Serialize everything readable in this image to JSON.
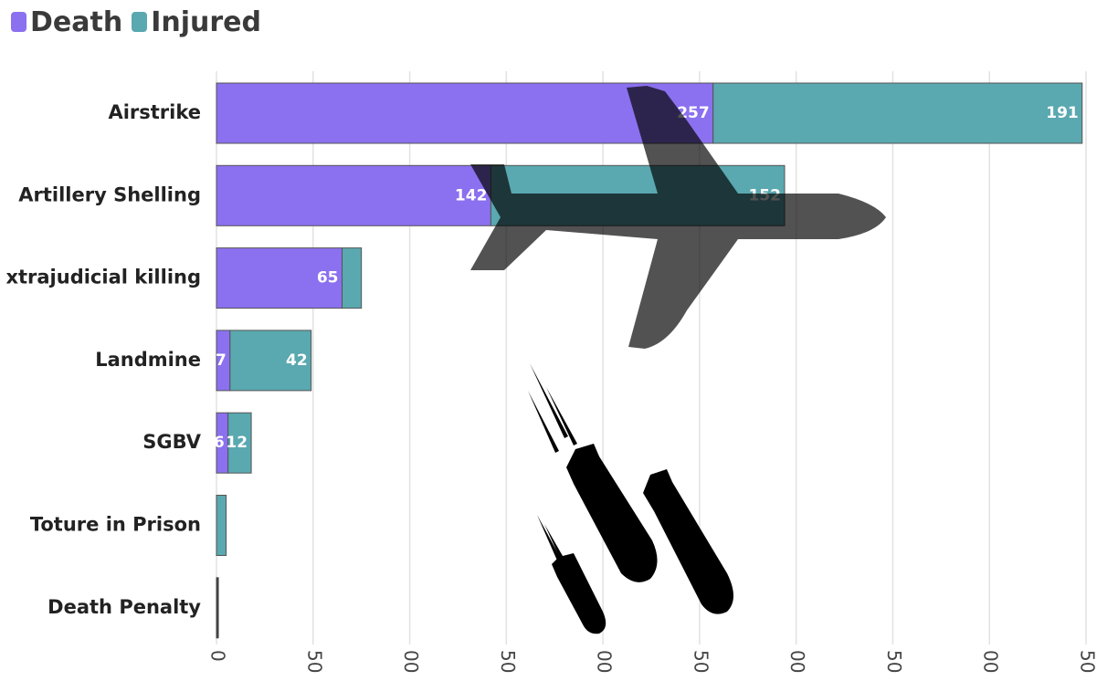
{
  "chart_data": {
    "type": "bar",
    "orientation": "horizontal",
    "stacked": true,
    "title": "",
    "xlabel": "",
    "ylabel": "",
    "legend_position": "top-left",
    "grid": true,
    "xlim": [
      0,
      450
    ],
    "x_ticks": [
      0,
      50,
      100,
      150,
      200,
      250,
      300,
      350,
      400,
      450
    ],
    "x_tick_labels": [
      "0",
      "50",
      "00",
      "50",
      "00",
      "50",
      "00",
      "50",
      "00",
      "50"
    ],
    "categories": [
      "Airstrike",
      "Artillery Shelling",
      "xtrajudicial killing",
      "Landmine",
      "SGBV",
      "Toture in Prison",
      "Death Penalty"
    ],
    "series": [
      {
        "name": "Death",
        "color": "#8b70f0",
        "values": [
          257,
          142,
          65,
          7,
          6,
          0,
          1
        ],
        "labels": [
          "257",
          "142",
          "65",
          "7",
          "6",
          "",
          ""
        ]
      },
      {
        "name": "Injured",
        "color": "#5aa8b0",
        "values": [
          191,
          152,
          10,
          42,
          12,
          5,
          0
        ],
        "labels": [
          "191",
          "152",
          "",
          "42",
          "12",
          "",
          ""
        ]
      }
    ],
    "decoration": [
      "airplane-icon",
      "falling-bombs-icon"
    ]
  }
}
